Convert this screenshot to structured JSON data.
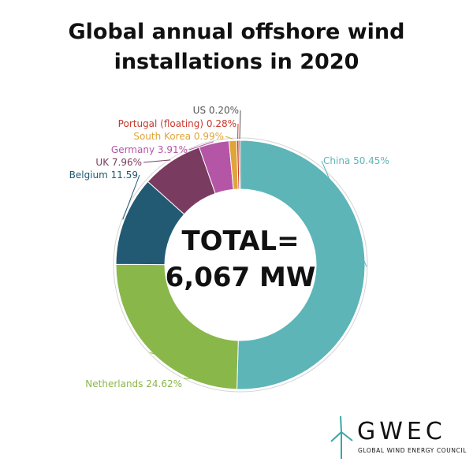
{
  "chart_data": {
    "type": "pie",
    "variant": "donut",
    "title_lines": [
      "Global annual offshore wind",
      "installations in 2020"
    ],
    "center_text_lines": [
      "TOTAL=",
      "6,067 MW"
    ],
    "start_at": "12 o'clock",
    "direction": "clockwise",
    "slices": [
      {
        "name": "China",
        "value": 50.45,
        "label": "China 50.45%",
        "color": "#5db5b8"
      },
      {
        "name": "Netherlands",
        "value": 24.62,
        "label": "Netherlands 24.62%",
        "color": "#8ab74a"
      },
      {
        "name": "Belgium",
        "value": 11.59,
        "label": "Belgium 11.59",
        "color": "#215a72"
      },
      {
        "name": "UK",
        "value": 7.96,
        "label": "UK 7.96%",
        "color": "#7a3b60"
      },
      {
        "name": "Germany",
        "value": 3.91,
        "label": "Germany 3.91%",
        "color": "#b555a6"
      },
      {
        "name": "South Korea",
        "value": 0.99,
        "label": "South Korea 0.99%",
        "color": "#e0a53a"
      },
      {
        "name": "Portugal (floating)",
        "value": 0.28,
        "label": "Portugal (floating) 0.28%",
        "color": "#c9392c"
      },
      {
        "name": "US",
        "value": 0.2,
        "label": "US 0.20%",
        "color": "#555555"
      }
    ]
  },
  "logo": {
    "name": "GWEC",
    "subtitle": "GLOBAL WIND ENERGY COUNCIL",
    "accent_color": "#3aa6a6"
  }
}
